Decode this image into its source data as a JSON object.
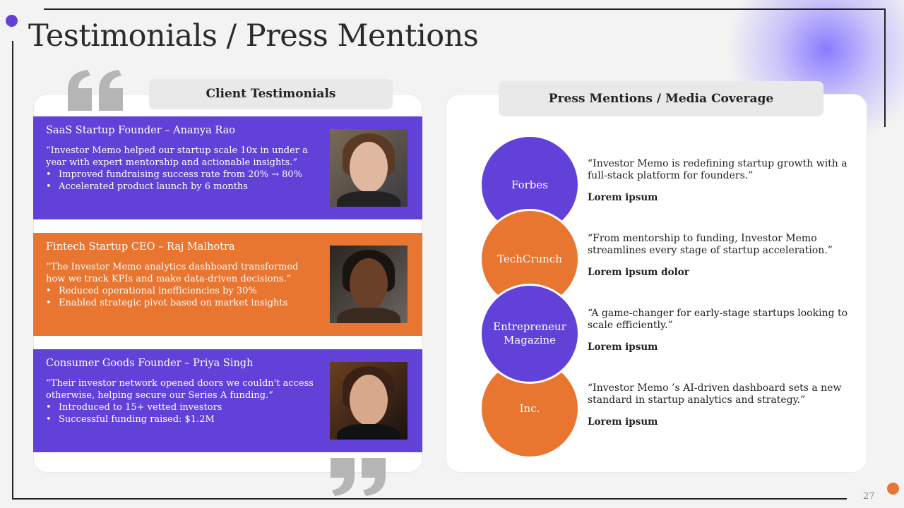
{
  "title": "Testimonials / Press Mentions",
  "page_number": "27",
  "colors": {
    "purple": "#6241d9",
    "orange": "#e87530"
  },
  "testimonials": {
    "heading": "Client Testimonials",
    "items": [
      {
        "name": "SaaS Startup Founder – Ananya Rao",
        "quote": "“Investor Memo  helped our startup scale 10x in under a year with expert mentorship and actionable insights.”",
        "bullets": [
          "Improved fundraising success rate from 20% → 80%",
          "Accelerated product launch by 6 months"
        ],
        "color": "#6241d9"
      },
      {
        "name": "Fintech Startup CEO – Raj Malhotra",
        "quote": "“The Investor Memo  analytics dashboard transformed how we track KPIs and make data-driven decisions.”",
        "bullets": [
          "Reduced operational inefficiencies by 30%",
          "Enabled strategic pivot based on market insights"
        ],
        "color": "#e87530"
      },
      {
        "name": "Consumer Goods Founder – Priya Singh",
        "quote": "“Their investor network opened doors we couldn't access otherwise, helping secure our Series A funding.”",
        "bullets": [
          "Introduced to 15+ vetted investors",
          "Successful funding raised: $1.2M"
        ],
        "color": "#6241d9"
      }
    ]
  },
  "press": {
    "heading": "Press Mentions / Media Coverage",
    "items": [
      {
        "outlet": "Forbes",
        "quote": "“Investor Memo  is redefining startup growth with a full-stack platform for founders.”",
        "source": "Lorem ipsum",
        "color": "#6241d9"
      },
      {
        "outlet": "TechCrunch",
        "quote": "“From mentorship to funding, Investor Memo streamlines every stage of startup acceleration.”",
        "source": "Lorem ipsum dolor",
        "color": "#e87530"
      },
      {
        "outlet": "Entrepreneur Magazine",
        "quote": "“A game-changer for early-stage startups looking to scale efficiently.”",
        "source": "Lorem ipsum",
        "color": "#6241d9"
      },
      {
        "outlet": "Inc.",
        "quote": "“Investor Memo ’s AI-driven dashboard sets a new standard in startup analytics and strategy.”",
        "source": "Lorem ipsum",
        "color": "#e87530"
      }
    ]
  }
}
